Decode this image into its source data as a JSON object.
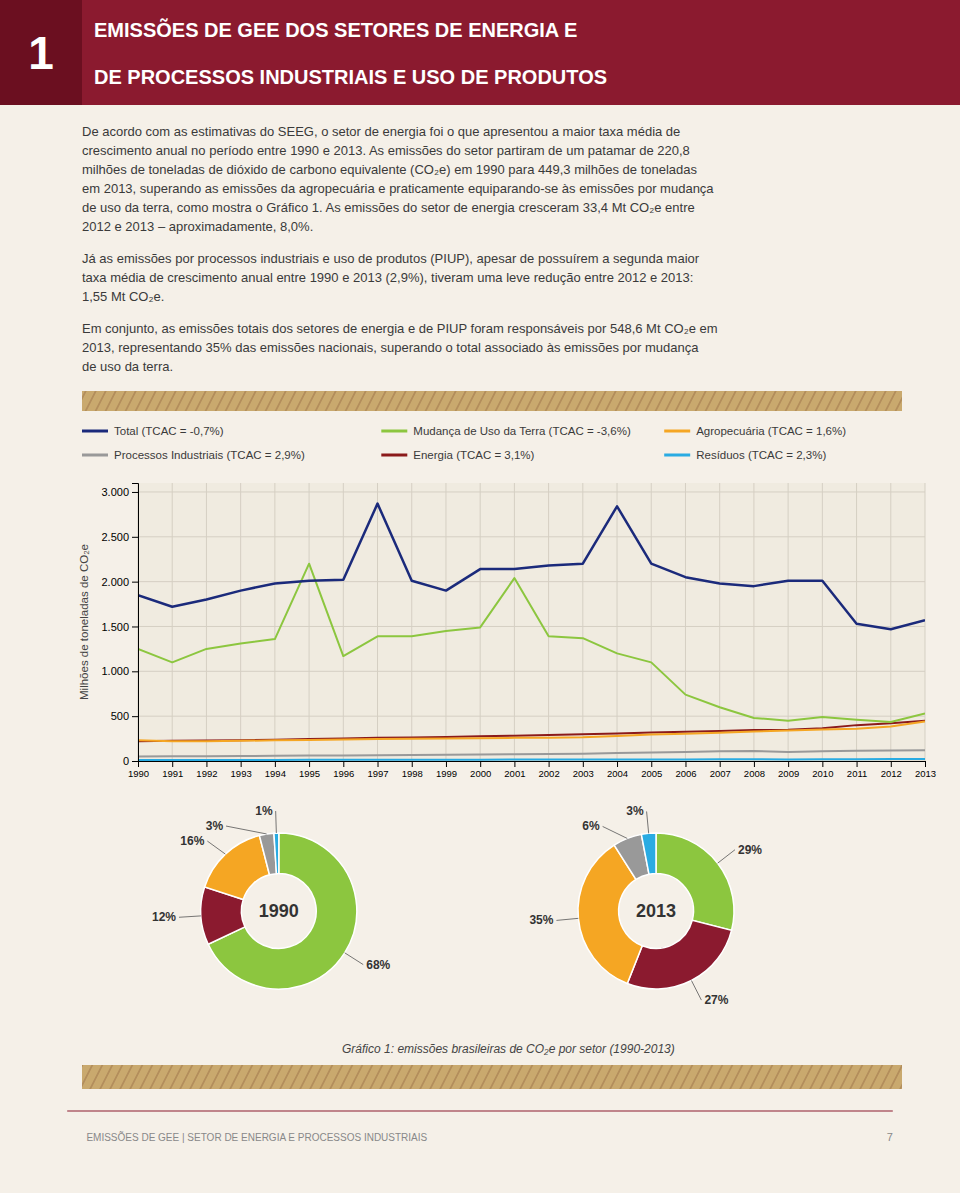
{
  "page": {
    "header_number": "1",
    "title_lines": [
      "EMISSÕES DE GEE DOS SETORES DE ENERGIA E",
      "DE PROCESSOS INDUSTRIAIS E USO DE PRODUTOS"
    ],
    "paragraphs": [
      [
        "De acordo com as estimativas do SEEG, o setor de energia foi o que apresentou a maior taxa média de",
        "crescimento anual no período entre 1990 e 2013. As emissões do setor partiram de um patamar de 220,8",
        "milhões de toneladas de dióxido de carbono equivalente (CO₂e) em 1990 para 449,3 milhões de toneladas",
        "em 2013, superando as emissões da agropecuária e praticamente equiparando-se às emissões por mudança",
        "de uso da terra, como mostra o Gráfico 1. As emissões do setor de energia cresceram 33,4 Mt CO₂e entre",
        "2012 e 2013 – aproximadamente, 8,0%."
      ],
      [
        "Já as emissões por processos industriais e uso de produtos (PIUP), apesar de possuírem a segunda maior",
        "taxa média de crescimento anual entre 1990 e 2013 (2,9%), tiveram uma leve redução entre 2012 e 2013:",
        "1,55 Mt CO₂e."
      ],
      [
        "Em conjunto, as emissões totais dos setores de energia e de PIUP foram responsáveis por 548,6 Mt CO₂e em",
        "2013, representando 35% das emissões nacionais, superando o total associado às emissões por mudança",
        "de uso da terra."
      ]
    ],
    "caption": "Gráfico 1: emissões brasileiras de CO₂e por setor (1990-2013)",
    "footer_text": "EMISSÕES DE GEE  |  SETOR DE ENERGIA E PROCESSOS INDUSTRIAIS",
    "footer_page": "7"
  },
  "chart_data": [
    {
      "type": "line",
      "x": [
        1990,
        1991,
        1992,
        1993,
        1994,
        1995,
        1996,
        1997,
        1998,
        1999,
        2000,
        2001,
        2002,
        2003,
        2004,
        2005,
        2006,
        2007,
        2008,
        2009,
        2010,
        2011,
        2012,
        2013
      ],
      "series": [
        {
          "name": "Total (TCAC = -0,7%)",
          "color": "#1B2A7B",
          "values": [
            1850,
            1720,
            1800,
            1900,
            1980,
            2010,
            2020,
            2870,
            2010,
            1900,
            2140,
            2140,
            2180,
            2200,
            2840,
            2200,
            2050,
            1980,
            1950,
            2010,
            2010,
            1530,
            1470,
            1570
          ]
        },
        {
          "name": "Mudança de Uso da Terra (TCAC = -3,6%)",
          "color": "#8CC63F",
          "values": [
            1250,
            1100,
            1250,
            1310,
            1360,
            2200,
            1170,
            1390,
            1390,
            1450,
            1490,
            2040,
            1390,
            1370,
            1200,
            1100,
            740,
            600,
            480,
            450,
            490,
            460,
            435,
            530
          ]
        },
        {
          "name": "Agropecuária (TCAC = 1,6%)",
          "color": "#F5A623",
          "values": [
            230,
            220,
            220,
            225,
            230,
            235,
            240,
            245,
            248,
            252,
            255,
            258,
            260,
            265,
            280,
            295,
            305,
            315,
            330,
            340,
            350,
            360,
            385,
            440
          ]
        },
        {
          "name": "Processos Industriais (TCAC = 2,9%)",
          "color": "#999999",
          "values": [
            50,
            52,
            54,
            56,
            58,
            60,
            62,
            65,
            68,
            70,
            72,
            75,
            78,
            82,
            90,
            95,
            100,
            108,
            112,
            100,
            110,
            115,
            118,
            120
          ]
        },
        {
          "name": "Energia (TCAC = 3,1%)",
          "color": "#8B1A1A",
          "values": [
            220,
            225,
            228,
            232,
            238,
            245,
            252,
            258,
            262,
            268,
            275,
            282,
            290,
            298,
            308,
            318,
            325,
            335,
            345,
            348,
            365,
            400,
            420,
            450
          ]
        },
        {
          "name": "Resíduos (TCAC = 2,3%)",
          "color": "#29ABE2",
          "values": [
            10,
            11,
            11,
            12,
            12,
            13,
            13,
            14,
            14,
            15,
            15,
            16,
            16,
            17,
            17,
            18,
            18,
            19,
            19,
            18,
            20,
            20,
            21,
            22
          ]
        }
      ],
      "xlim": [
        1990,
        2013
      ],
      "xticks": [
        1990,
        1991,
        1992,
        1993,
        1994,
        1995,
        1996,
        1997,
        1998,
        1999,
        2000,
        2001,
        2002,
        2003,
        2004,
        2005,
        2006,
        2007,
        2008,
        2009,
        2010,
        2011,
        2012,
        2013
      ],
      "ylim": [
        0,
        3100
      ],
      "yticks": [
        0,
        500,
        {
          "value": 1000,
          "label": "1.000"
        },
        {
          "value": 1500,
          "label": "1.500"
        },
        {
          "value": 2000,
          "label": "2.000"
        },
        {
          "value": 2500,
          "label": "2.500"
        },
        {
          "value": 3000,
          "label": "3.000"
        }
      ],
      "ylabel": "Milhões de toneladas de CO₂e",
      "grid": true,
      "legend": "top"
    },
    {
      "type": "pie",
      "title": "1990",
      "values": [
        68,
        12,
        16,
        3,
        1
      ],
      "value_labels": [
        "68%",
        "12%",
        "16%",
        "3%",
        "1%"
      ],
      "colors": [
        "#8CC63F",
        "#8B1A2F",
        "#F5A623",
        "#999999",
        "#29ABE2"
      ],
      "data_labels": true
    },
    {
      "type": "pie",
      "title": "2013",
      "values": [
        29,
        27,
        35,
        6,
        3
      ],
      "value_labels": [
        "29%",
        "27%",
        "35%",
        "6%",
        "3%"
      ],
      "colors": [
        "#8CC63F",
        "#8B1A2F",
        "#F5A623",
        "#999999",
        "#29ABE2"
      ],
      "data_labels": true
    }
  ]
}
